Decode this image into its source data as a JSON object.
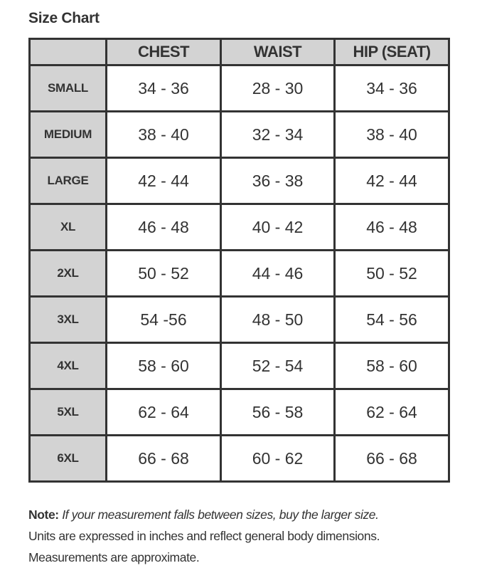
{
  "title": "Size Chart",
  "table": {
    "headers": [
      "",
      "CHEST",
      "WAIST",
      "HIP (SEAT)"
    ],
    "rows": [
      {
        "size": "SMALL",
        "chest": "34 - 36",
        "waist": "28 - 30",
        "hip": "34 - 36"
      },
      {
        "size": "MEDIUM",
        "chest": "38 - 40",
        "waist": "32 - 34",
        "hip": "38 - 40"
      },
      {
        "size": "LARGE",
        "chest": "42 - 44",
        "waist": "36 - 38",
        "hip": "42 - 44"
      },
      {
        "size": "XL",
        "chest": "46 - 48",
        "waist": "40 - 42",
        "hip": "46 - 48"
      },
      {
        "size": "2XL",
        "chest": "50 - 52",
        "waist": "44 - 46",
        "hip": "50 - 52"
      },
      {
        "size": "3XL",
        "chest": "54 -56",
        "waist": "48 - 50",
        "hip": "54 - 56"
      },
      {
        "size": "4XL",
        "chest": "58 - 60",
        "waist": "52 - 54",
        "hip": "58 - 60"
      },
      {
        "size": "5XL",
        "chest": "62 - 64",
        "waist": "56 - 58",
        "hip": "62 - 64"
      },
      {
        "size": "6XL",
        "chest": "66 - 68",
        "waist": "60 - 62",
        "hip": "66 - 68"
      }
    ]
  },
  "notes": {
    "label": "Note:",
    "italic": "If your measurement falls between sizes, buy the larger size.",
    "line2": "Units are expressed in inches and reflect general body dimensions.",
    "line3": "Measurements are approximate."
  },
  "colors": {
    "header_bg": "#d3d3d3",
    "border": "#333333",
    "text": "#333333"
  }
}
